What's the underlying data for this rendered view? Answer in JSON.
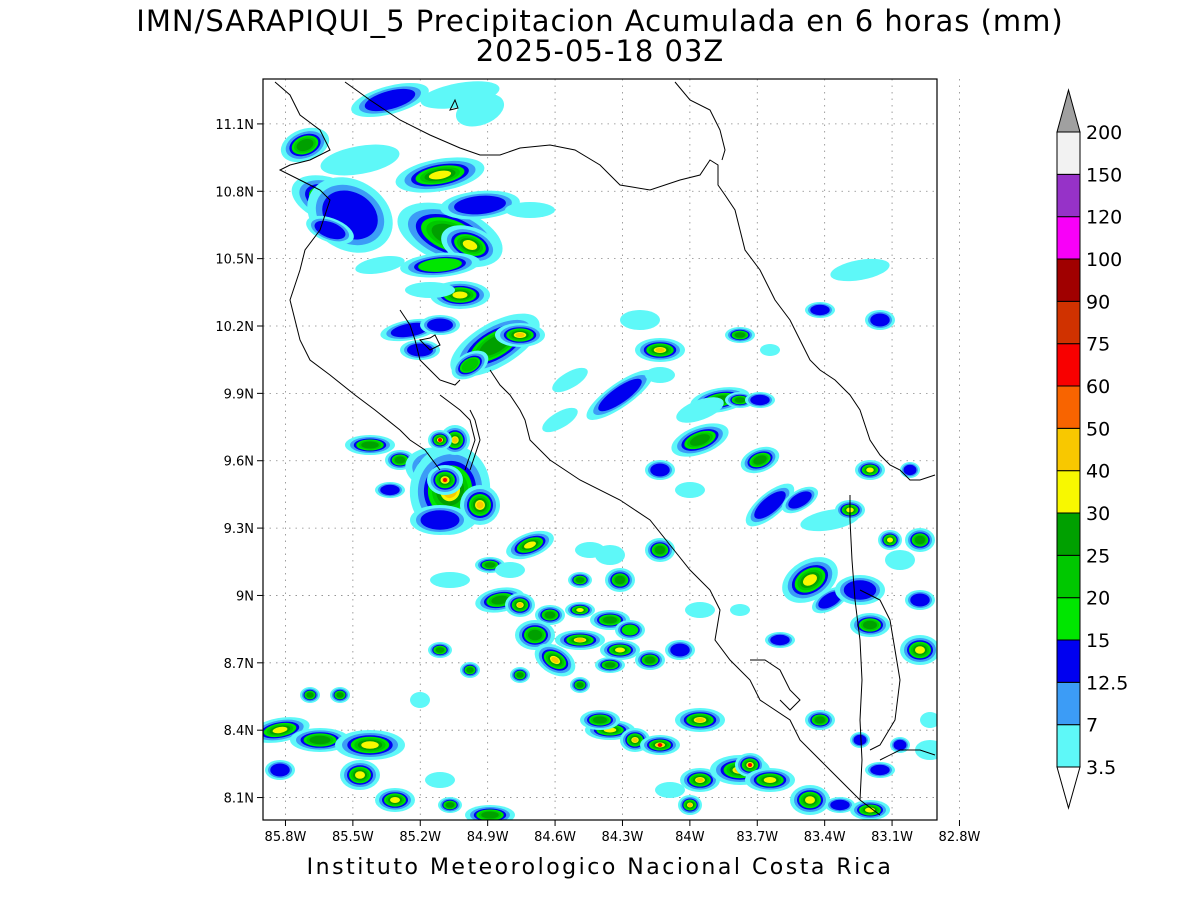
{
  "title": {
    "line1": "IMN/SARAPIQUI_5 Precipitacion Acumulada en 6 horas (mm)",
    "line2": "2025-05-18 03Z"
  },
  "footer": "Instituto Meteorologico Nacional Costa Rica",
  "map": {
    "lat_range": [
      8.0,
      11.3
    ],
    "lon_range": [
      -85.9,
      -82.9
    ],
    "grid": "dotted",
    "lat_ticks": [
      {
        "value": 11.1,
        "label": "11.1N"
      },
      {
        "value": 10.8,
        "label": "10.8N"
      },
      {
        "value": 10.5,
        "label": "10.5N"
      },
      {
        "value": 10.2,
        "label": "10.2N"
      },
      {
        "value": 9.9,
        "label": "9.9N"
      },
      {
        "value": 9.6,
        "label": "9.6N"
      },
      {
        "value": 9.3,
        "label": "9.3N"
      },
      {
        "value": 9.0,
        "label": "9N"
      },
      {
        "value": 8.7,
        "label": "8.7N"
      },
      {
        "value": 8.4,
        "label": "8.4N"
      },
      {
        "value": 8.1,
        "label": "8.1N"
      }
    ],
    "lon_ticks": [
      {
        "value": -85.8,
        "label": "85.8W"
      },
      {
        "value": -85.5,
        "label": "85.5W"
      },
      {
        "value": -85.2,
        "label": "85.2W"
      },
      {
        "value": -84.9,
        "label": "84.9W"
      },
      {
        "value": -84.6,
        "label": "84.6W"
      },
      {
        "value": -84.3,
        "label": "84.3W"
      },
      {
        "value": -84.0,
        "label": "84W"
      },
      {
        "value": -83.7,
        "label": "83.7W"
      },
      {
        "value": -83.4,
        "label": "83.4W"
      },
      {
        "value": -83.1,
        "label": "83.1W"
      },
      {
        "value": -82.8,
        "label": "82.8W"
      }
    ]
  },
  "colorbar": {
    "levels": [
      "3.5",
      "7",
      "12.5",
      "15",
      "20",
      "25",
      "30",
      "40",
      "50",
      "60",
      "75",
      "90",
      "100",
      "120",
      "150",
      "200"
    ],
    "colors": [
      "#5ef8f8",
      "#3c9cf6",
      "#0000f0",
      "#00e600",
      "#00c800",
      "#00a000",
      "#f8f800",
      "#f8c800",
      "#f86400",
      "#f80000",
      "#d03200",
      "#a00000",
      "#f800f8",
      "#9632c8",
      "#f2f2f2"
    ],
    "over_color": "#a0a0a0",
    "under_color": "#ffffff"
  }
}
